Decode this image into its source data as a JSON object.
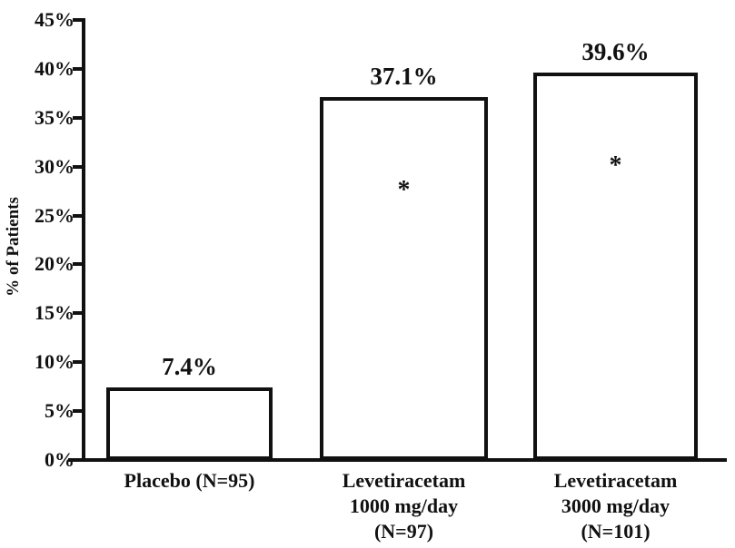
{
  "chart_data": {
    "type": "bar",
    "title": "",
    "xlabel": "",
    "ylabel": "% of Patients",
    "ylim": [
      0,
      45
    ],
    "grid": false,
    "legend": false,
    "ytick_labels": [
      "0%",
      "5%",
      "10%",
      "15%",
      "20%",
      "25%",
      "30%",
      "35%",
      "40%",
      "45%"
    ],
    "categories": [
      "Placebo (N=95)",
      "Levetiracetam\n1000 mg/day\n(N=97)",
      "Levetiracetam\n3000 mg/day\n(N=101)"
    ],
    "values": [
      7.4,
      37.1,
      39.6
    ],
    "bar_labels": [
      "7.4%",
      "37.1%",
      "39.6%"
    ],
    "annotations": [
      "",
      "*",
      "*"
    ],
    "bar_fill": "#ffffff",
    "bar_border": "#111111"
  }
}
